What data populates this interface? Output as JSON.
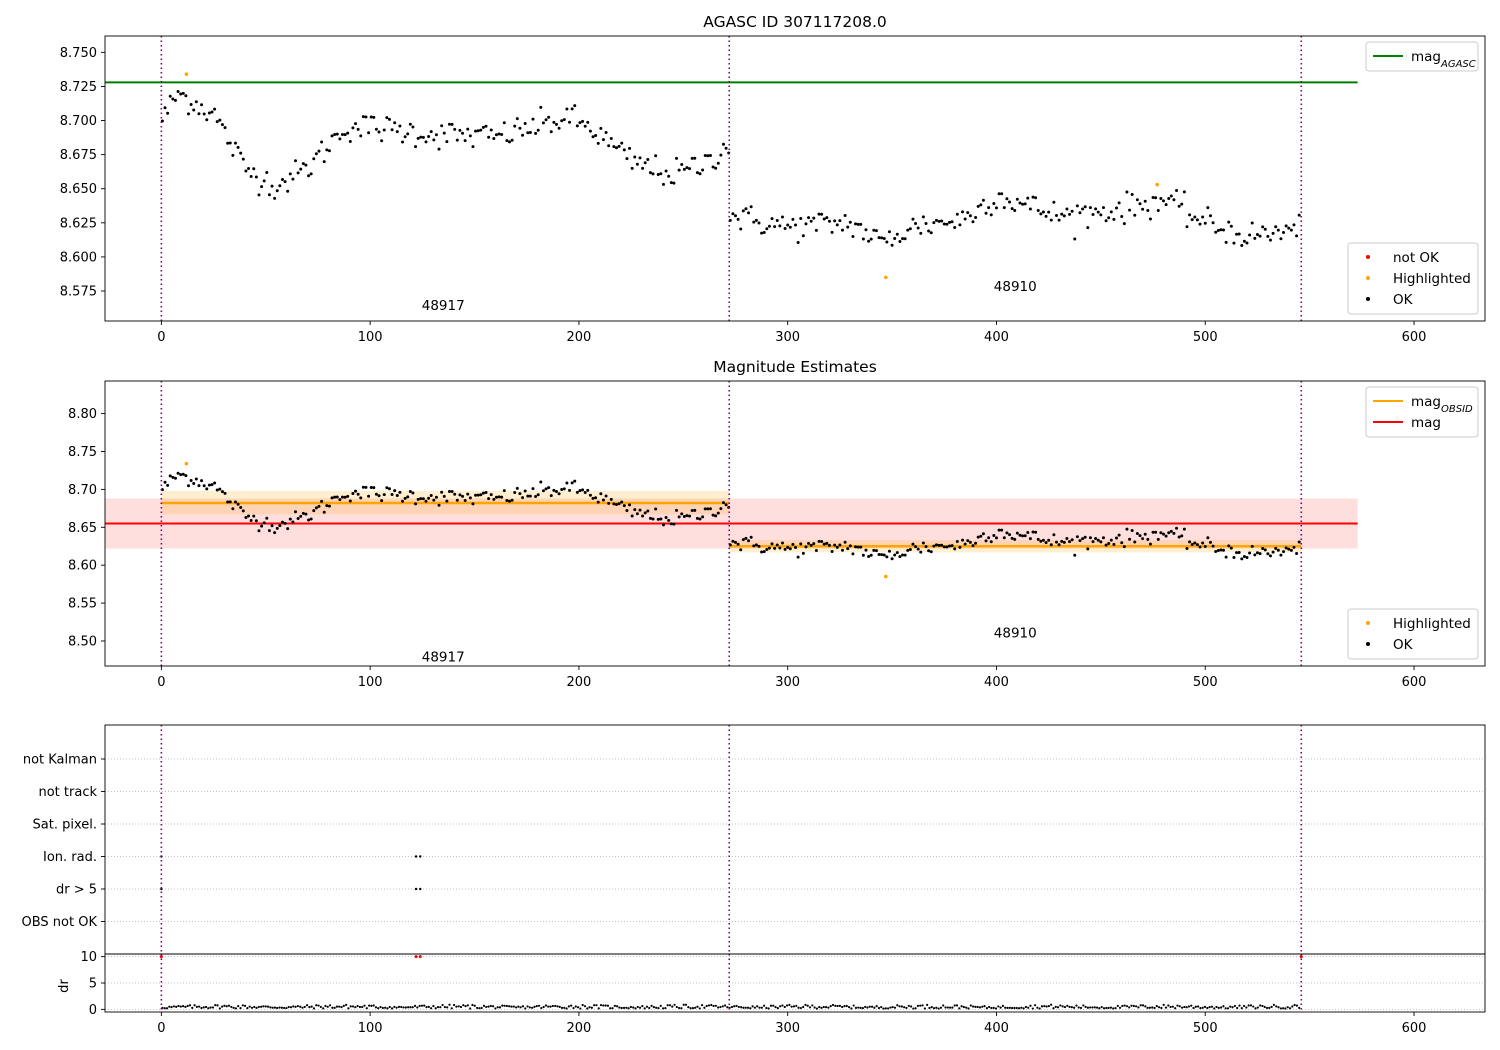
{
  "chart_data": [
    {
      "type": "scatter",
      "title": "AGASC ID 307117208.0",
      "xlim": [
        -27,
        634
      ],
      "ylim": [
        8.553,
        8.762
      ],
      "xticks": [
        0,
        100,
        200,
        300,
        400,
        500,
        600
      ],
      "yticks": [
        8.575,
        8.6,
        8.625,
        8.65,
        8.675,
        8.7,
        8.725,
        8.75
      ],
      "ytick_labels": [
        "8.575",
        "8.600",
        "8.625",
        "8.650",
        "8.675",
        "8.700",
        "8.725",
        "8.750"
      ],
      "obsid_boundaries": [
        0,
        272,
        546
      ],
      "obsid_labels": [
        {
          "text": "48917",
          "x": 135,
          "y": 8.564
        },
        {
          "text": "48910",
          "x": 409,
          "y": 8.578
        }
      ],
      "mag_agasc": {
        "y": 8.728,
        "x": [
          -27,
          573
        ]
      },
      "segment1": {
        "x": [
          0,
          272
        ],
        "knots_x": [
          0,
          8,
          25,
          40,
          55,
          70,
          88,
          100,
          130,
          160,
          195,
          205,
          225,
          245,
          260,
          272
        ],
        "knots_y": [
          8.7,
          8.72,
          8.705,
          8.665,
          8.652,
          8.665,
          8.695,
          8.695,
          8.69,
          8.688,
          8.702,
          8.695,
          8.67,
          8.66,
          8.668,
          8.683
        ],
        "noise": 0.0065
      },
      "segment2": {
        "x": [
          272,
          546
        ],
        "knots_x": [
          272,
          300,
          330,
          345,
          360,
          385,
          400,
          430,
          460,
          480,
          500,
          520,
          546
        ],
        "knots_y": [
          8.63,
          8.622,
          8.625,
          8.61,
          8.622,
          8.628,
          8.645,
          8.63,
          8.635,
          8.642,
          8.625,
          8.615,
          8.62
        ],
        "noise": 0.0065
      },
      "highlighted": [
        {
          "x": 12,
          "y": 8.734
        },
        {
          "x": 347,
          "y": 8.585
        },
        {
          "x": 477,
          "y": 8.653
        }
      ],
      "legends": [
        {
          "position": "upper right",
          "entries": [
            {
              "label": "mag",
              "sub": "AGASC",
              "color": "#008000",
              "kind": "line"
            }
          ]
        },
        {
          "position": "lower right",
          "entries": [
            {
              "label": "not OK",
              "color": "#ff0000",
              "kind": "dot"
            },
            {
              "label": "Highlighted",
              "color": "#ffa500",
              "kind": "dot"
            },
            {
              "label": "OK",
              "color": "#000000",
              "kind": "dot"
            }
          ]
        }
      ]
    },
    {
      "type": "scatter",
      "title": "Magnitude Estimates",
      "xlim": [
        -27,
        634
      ],
      "ylim": [
        8.467,
        8.843
      ],
      "xticks": [
        0,
        100,
        200,
        300,
        400,
        500,
        600
      ],
      "yticks": [
        8.5,
        8.55,
        8.6,
        8.65,
        8.7,
        8.75,
        8.8
      ],
      "ytick_labels": [
        "8.50",
        "8.55",
        "8.60",
        "8.65",
        "8.70",
        "8.75",
        "8.80"
      ],
      "obsid_boundaries": [
        0,
        272,
        546
      ],
      "obsid_labels": [
        {
          "text": "48917",
          "x": 135,
          "y": 8.478
        },
        {
          "text": "48910",
          "x": 409,
          "y": 8.51
        }
      ],
      "mag": {
        "y": 8.655,
        "band": [
          8.622,
          8.688
        ],
        "x": [
          -27,
          573
        ]
      },
      "mag_obsid": [
        {
          "x": [
            0,
            272
          ],
          "y": 8.682,
          "band": [
            8.667,
            8.698
          ]
        },
        {
          "x": [
            272,
            546
          ],
          "y": 8.625,
          "band": [
            8.617,
            8.633
          ]
        }
      ],
      "highlighted": [
        {
          "x": 12,
          "y": 8.734
        },
        {
          "x": 347,
          "y": 8.585
        }
      ],
      "legends": [
        {
          "position": "upper right",
          "entries": [
            {
              "label": "mag",
              "sub": "OBSID",
              "color": "#ffa500",
              "kind": "line"
            },
            {
              "label": "mag",
              "sub": "",
              "color": "#ff0000",
              "kind": "line"
            }
          ]
        },
        {
          "position": "lower right",
          "entries": [
            {
              "label": "Highlighted",
              "color": "#ffa500",
              "kind": "dot"
            },
            {
              "label": "OK",
              "color": "#000000",
              "kind": "dot"
            }
          ]
        }
      ]
    },
    {
      "type": "scatter",
      "title": "",
      "xlim": [
        -27,
        634
      ],
      "categories": [
        "not Kalman",
        "not track",
        "Sat. pixel.",
        "Ion. rad.",
        "dr > 5",
        "OBS not OK"
      ],
      "flag_points": [
        {
          "flag": "Ion. rad.",
          "x": [
            0,
            122,
            124
          ]
        },
        {
          "flag": "dr > 5",
          "x": [
            0,
            122,
            124
          ]
        }
      ],
      "obsid_boundaries": [
        0,
        272,
        546
      ]
    },
    {
      "type": "scatter",
      "title": "",
      "ylabel": "dr",
      "xlim": [
        -27,
        634
      ],
      "ylim": [
        -0.5,
        10.5
      ],
      "xticks": [
        0,
        100,
        200,
        300,
        400,
        500,
        600
      ],
      "yticks": [
        0,
        5,
        10
      ],
      "dr_noise": [
        0.15,
        0.9
      ],
      "dr_high": [
        {
          "x": 0,
          "y": 10
        },
        {
          "x": 122,
          "y": 10
        },
        {
          "x": 124,
          "y": 10
        },
        {
          "x": 546,
          "y": 10
        }
      ],
      "obsid_boundaries": [
        0,
        272,
        546
      ]
    }
  ]
}
